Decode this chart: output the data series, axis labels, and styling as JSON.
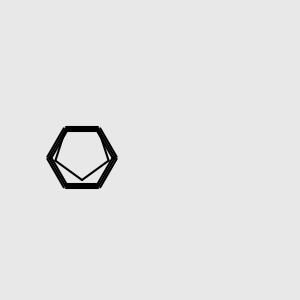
{
  "bg_color": "#e8e8e8",
  "bond_color": "#000000",
  "o_color": "#ff0000",
  "n_color": "#0000cc",
  "lw": 1.5,
  "lw2": 1.5
}
